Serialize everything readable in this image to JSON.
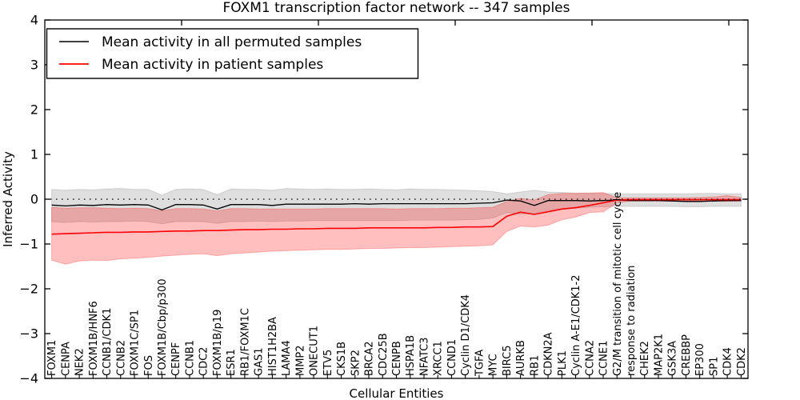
{
  "figure": {
    "title": "FOXM1 transcription factor network -- 347 samples",
    "xlabel": "Cellular Entities",
    "ylabel": "Inferred Activity"
  },
  "legend": {
    "position": "upper left",
    "items": [
      {
        "label": "Mean activity in all permuted samples",
        "color": "#000000"
      },
      {
        "label": "Mean activity in patient samples",
        "color": "#ff0000"
      }
    ]
  },
  "chart_data": {
    "type": "line",
    "title": "FOXM1 transcription factor network -- 347 samples",
    "xlabel": "Cellular Entities",
    "ylabel": "Inferred Activity",
    "ylim": [
      -4,
      4
    ],
    "yticks": [
      4,
      3,
      2,
      1,
      0,
      -1,
      -2,
      -3,
      -4
    ],
    "yticklabels": [
      "4",
      "3",
      "2",
      "1",
      "0",
      "−1",
      "−2",
      "−3",
      "−4"
    ],
    "grid": false,
    "zero_line_style": "dotted",
    "legend_position": "upper left",
    "categories": [
      "FOXM1",
      "CENPA",
      "NEK2",
      "FOXM1B/HNF6",
      "CCNB1/CDK1",
      "CCNB2",
      "FOXM1C/SP1",
      "FOS",
      "FOXM1B/Cbp/p300",
      "CENPF",
      "CCNB1",
      "CDC2",
      "FOXM1B/p19",
      "ESR1",
      "RB1/FOXM1C",
      "GAS1",
      "HIST1H2BA",
      "LAMA4",
      "MMP2",
      "ONECUT1",
      "ETV5",
      "CKS1B",
      "SKP2",
      "BRCA2",
      "CDC25B",
      "CENPB",
      "HSPA1B",
      "NFATC3",
      "XRCC1",
      "CCND1",
      "Cyclin D1/CDK4",
      "TGFA",
      "MYC",
      "BIRC5",
      "AURKB",
      "RB1",
      "CDKN2A",
      "PLK1",
      "Cyclin A-E1/CDK1-2",
      "CCNA2",
      "CCNE1",
      "G2/M transition of mitotic cell cycle",
      "response to radiation",
      "CHEK2",
      "MAP2K1",
      "GSK3A",
      "CREBBP",
      "EP300",
      "SP1",
      "CDK4",
      "CDK2"
    ],
    "series": [
      {
        "name": "Mean activity in all permuted samples",
        "color": "#000000",
        "band_color": "rgba(0,0,0,0.13)",
        "values": [
          -0.13,
          -0.15,
          -0.13,
          -0.14,
          -0.12,
          -0.13,
          -0.12,
          -0.13,
          -0.24,
          -0.12,
          -0.12,
          -0.13,
          -0.22,
          -0.12,
          -0.12,
          -0.12,
          -0.14,
          -0.11,
          -0.11,
          -0.11,
          -0.11,
          -0.11,
          -0.1,
          -0.11,
          -0.1,
          -0.1,
          -0.1,
          -0.1,
          -0.1,
          -0.1,
          -0.1,
          -0.09,
          -0.08,
          -0.02,
          -0.04,
          -0.14,
          -0.03,
          -0.03,
          -0.03,
          -0.04,
          -0.03,
          -0.02,
          -0.03,
          -0.03,
          -0.03,
          -0.04,
          -0.05,
          -0.05,
          -0.04,
          -0.03,
          -0.03
        ],
        "band_upper": [
          0.22,
          0.2,
          0.22,
          0.21,
          0.23,
          0.24,
          0.22,
          0.22,
          0.09,
          0.22,
          0.23,
          0.22,
          0.1,
          0.23,
          0.22,
          0.22,
          0.2,
          0.24,
          0.23,
          0.22,
          0.23,
          0.22,
          0.22,
          0.23,
          0.22,
          0.21,
          0.23,
          0.22,
          0.22,
          0.21,
          0.2,
          0.19,
          0.17,
          0.12,
          0.16,
          0.2,
          0.16,
          0.15,
          0.14,
          0.13,
          0.13,
          0.12,
          0.12,
          0.12,
          0.12,
          0.12,
          0.12,
          0.13,
          0.13,
          0.12,
          0.12
        ],
        "band_lower": [
          -0.5,
          -0.52,
          -0.5,
          -0.51,
          -0.5,
          -0.5,
          -0.49,
          -0.5,
          -0.55,
          -0.5,
          -0.5,
          -0.5,
          -0.54,
          -0.5,
          -0.5,
          -0.49,
          -0.5,
          -0.49,
          -0.49,
          -0.48,
          -0.48,
          -0.48,
          -0.48,
          -0.48,
          -0.48,
          -0.48,
          -0.47,
          -0.47,
          -0.47,
          -0.47,
          -0.46,
          -0.45,
          -0.42,
          -0.3,
          -0.33,
          -0.32,
          -0.25,
          -0.22,
          -0.2,
          -0.18,
          -0.17,
          -0.16,
          -0.16,
          -0.16,
          -0.16,
          -0.16,
          -0.17,
          -0.17,
          -0.16,
          -0.16,
          -0.16
        ]
      },
      {
        "name": "Mean activity in patient samples",
        "color": "#ff0000",
        "band_color": "rgba(255,0,0,0.25)",
        "values": [
          -0.78,
          -0.77,
          -0.76,
          -0.75,
          -0.74,
          -0.74,
          -0.73,
          -0.73,
          -0.72,
          -0.71,
          -0.71,
          -0.7,
          -0.7,
          -0.69,
          -0.68,
          -0.68,
          -0.67,
          -0.67,
          -0.66,
          -0.66,
          -0.65,
          -0.65,
          -0.65,
          -0.64,
          -0.64,
          -0.64,
          -0.64,
          -0.64,
          -0.63,
          -0.63,
          -0.62,
          -0.62,
          -0.61,
          -0.38,
          -0.29,
          -0.34,
          -0.28,
          -0.22,
          -0.19,
          -0.14,
          -0.08,
          -0.02,
          -0.01,
          -0.01,
          -0.01,
          -0.01,
          -0.01,
          -0.01,
          -0.01,
          -0.01,
          -0.01
        ],
        "band_upper": [
          -0.18,
          -0.2,
          -0.19,
          -0.19,
          -0.2,
          -0.21,
          -0.2,
          -0.21,
          -0.26,
          -0.21,
          -0.21,
          -0.22,
          -0.26,
          -0.21,
          -0.21,
          -0.22,
          -0.22,
          -0.22,
          -0.22,
          -0.22,
          -0.21,
          -0.21,
          -0.21,
          -0.21,
          -0.21,
          -0.22,
          -0.21,
          -0.21,
          -0.21,
          -0.2,
          -0.2,
          -0.19,
          -0.18,
          -0.05,
          0.02,
          -0.02,
          0.1,
          0.13,
          0.13,
          0.14,
          0.15,
          0.03,
          0.03,
          0.03,
          0.03,
          0.03,
          0.03,
          0.04,
          0.05,
          0.08,
          0.04
        ],
        "band_lower": [
          -1.36,
          -1.45,
          -1.38,
          -1.36,
          -1.37,
          -1.33,
          -1.32,
          -1.3,
          -1.27,
          -1.25,
          -1.23,
          -1.22,
          -1.26,
          -1.22,
          -1.2,
          -1.18,
          -1.16,
          -1.15,
          -1.14,
          -1.13,
          -1.12,
          -1.12,
          -1.11,
          -1.1,
          -1.1,
          -1.09,
          -1.08,
          -1.08,
          -1.07,
          -1.06,
          -1.05,
          -1.04,
          -1.02,
          -0.72,
          -0.6,
          -0.62,
          -0.58,
          -0.46,
          -0.4,
          -0.3,
          -0.28,
          -0.08,
          -0.04,
          -0.04,
          -0.04,
          -0.04,
          -0.04,
          -0.04,
          -0.04,
          -0.05,
          -0.04
        ]
      }
    ]
  }
}
